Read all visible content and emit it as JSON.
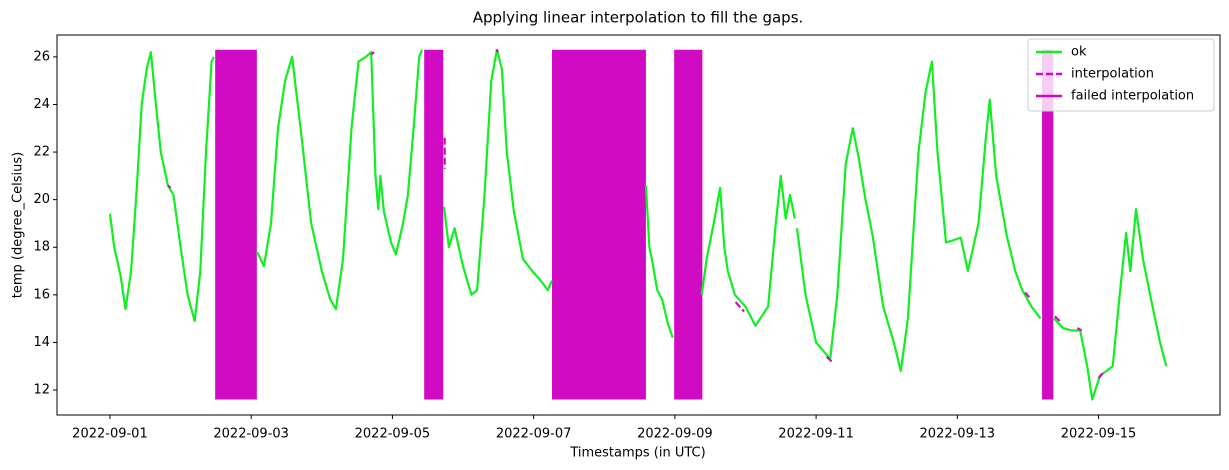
{
  "chart_data": {
    "type": "line",
    "title": "Applying linear interpolation to fill the gaps.",
    "x_label": "Timestamps (in UTC)",
    "y_label": "temp (degree_Celsius)",
    "xlim": [
      -0.75,
      15.72
    ],
    "xticks": [
      {
        "value": 0,
        "label": "2022-09-01"
      },
      {
        "value": 2,
        "label": "2022-09-03"
      },
      {
        "value": 4,
        "label": "2022-09-05"
      },
      {
        "value": 6,
        "label": "2022-09-07"
      },
      {
        "value": 8,
        "label": "2022-09-09"
      },
      {
        "value": 10,
        "label": "2022-09-11"
      },
      {
        "value": 12,
        "label": "2022-09-13"
      },
      {
        "value": 14,
        "label": "2022-09-15"
      }
    ],
    "ylim": [
      10.95,
      26.92
    ],
    "yticks": [
      12,
      14,
      16,
      18,
      20,
      22,
      24,
      26
    ],
    "legend": "upper right",
    "series": [
      {
        "name": "ok",
        "color": "#11ee22",
        "linestyle": "solid",
        "x": [
          0,
          0.06,
          0.15,
          0.22,
          0.3,
          0.38,
          0.45,
          0.52,
          0.58,
          0.65,
          0.72,
          0.82,
          0.9,
          1.0,
          1.1,
          1.2,
          1.28,
          1.36,
          1.44,
          1.47,
          1.48,
          2.08,
          2.12,
          2.18,
          2.28,
          2.38,
          2.48,
          2.58,
          2.7,
          2.85,
          3.0,
          3.12,
          3.2,
          3.3,
          3.42,
          3.52,
          3.62,
          3.7,
          3.76,
          3.8,
          3.83,
          3.88,
          3.98,
          4.05,
          4.15,
          4.22,
          4.3,
          4.38,
          4.42,
          4.5,
          4.73,
          4.8,
          4.88,
          5.0,
          5.12,
          5.2,
          5.3,
          5.4,
          5.48,
          5.55,
          5.62,
          5.72,
          5.85,
          5.98,
          6.1,
          6.2,
          6.26,
          6.5,
          7.59,
          7.64,
          7.68,
          7.75,
          7.82,
          7.9,
          7.97,
          8.1,
          8.38,
          8.45,
          8.55,
          8.64,
          8.7,
          8.75,
          8.85,
          9.0,
          9.14,
          9.32,
          9.43,
          9.5,
          9.57,
          9.63,
          9.7,
          9.72,
          9.73,
          9.85,
          10.0,
          10.2,
          10.3,
          10.42,
          10.52,
          10.6,
          10.7,
          10.8,
          10.95,
          11.1,
          11.2,
          11.3,
          11.45,
          11.55,
          11.64,
          11.72,
          11.84,
          11.95,
          12.05,
          12.15,
          12.3,
          12.4,
          12.46,
          12.55,
          12.7,
          12.82,
          12.92,
          13.05,
          13.18,
          13.25,
          13.37,
          13.5,
          13.62,
          13.74,
          13.84,
          13.91,
          14.02,
          14.2,
          14.3,
          14.39,
          14.45,
          14.53,
          14.63,
          14.73,
          14.87,
          14.96
        ],
        "values": [
          19.4,
          18,
          16.8,
          15.4,
          17,
          20.5,
          24,
          25.5,
          26.2,
          24,
          22,
          20.6,
          20.2,
          18,
          16,
          14.9,
          17,
          22,
          25.8,
          26,
          null,
          17.8,
          17.6,
          17.2,
          19,
          23,
          25,
          26,
          23,
          19,
          17,
          15.8,
          15.4,
          17.5,
          23,
          25.8,
          26,
          26.2,
          21,
          19.6,
          21,
          19.5,
          18.2,
          17.7,
          19,
          20.2,
          23,
          26,
          26.3,
          null,
          19.7,
          18,
          18.8,
          17.2,
          16,
          16.2,
          20,
          25,
          26.3,
          25.5,
          22,
          19.5,
          17.5,
          17,
          16.6,
          16.2,
          16.6,
          null,
          20.6,
          18,
          17.4,
          16.2,
          15.8,
          14.8,
          14.2,
          null,
          16,
          17.5,
          19,
          20.5,
          18,
          17,
          16,
          15.5,
          14.7,
          15.5,
          19,
          21,
          19.2,
          20.2,
          19.2,
          null,
          18.8,
          16,
          14,
          13.3,
          16,
          21.5,
          23,
          21.8,
          20,
          18.5,
          15.5,
          14,
          12.8,
          15,
          22,
          24.5,
          25.8,
          22,
          18.2,
          18.3,
          18.4,
          17,
          19,
          22.5,
          24.2,
          21,
          18.5,
          17,
          16.2,
          15.5,
          15,
          null,
          15,
          14.6,
          14.5,
          14.5,
          13,
          11.6,
          12.6,
          13,
          16,
          18.6,
          17,
          19.6,
          17.5,
          16,
          14,
          13
        ]
      },
      {
        "name": "interpolation",
        "color": "#d10bc4",
        "linestyle": "dashed",
        "x": [
          0.82,
          0.86,
          0.87,
          3.7,
          3.74,
          3.75,
          4.74,
          4.74,
          4.75,
          5.47,
          5.5,
          5.51,
          8.86,
          8.98,
          8.99,
          10.15,
          10.22,
          10.23,
          12.96,
          13.02,
          13.03,
          13.38,
          13.45,
          13.46,
          13.7,
          13.76,
          13.77,
          14.0,
          14.06
        ],
        "values": [
          20.6,
          20.5,
          null,
          26.1,
          26.2,
          null,
          22.6,
          21.3,
          null,
          26.3,
          26.2,
          null,
          15.7,
          15.3,
          null,
          13.4,
          13.2,
          null,
          16.1,
          15.9,
          null,
          15.1,
          14.9,
          null,
          14.6,
          14.5,
          null,
          12.5,
          12.7
        ]
      },
      {
        "name": "failed interpolation",
        "color": "#d10bc4",
        "linestyle": "solid",
        "x": [
          1.49,
          4.45,
          6.26,
          7.99,
          13.2
        ],
        "x_end": [
          2.08,
          4.72,
          7.59,
          8.39,
          13.36
        ],
        "low": 11.6,
        "high": 26.3
      }
    ]
  }
}
